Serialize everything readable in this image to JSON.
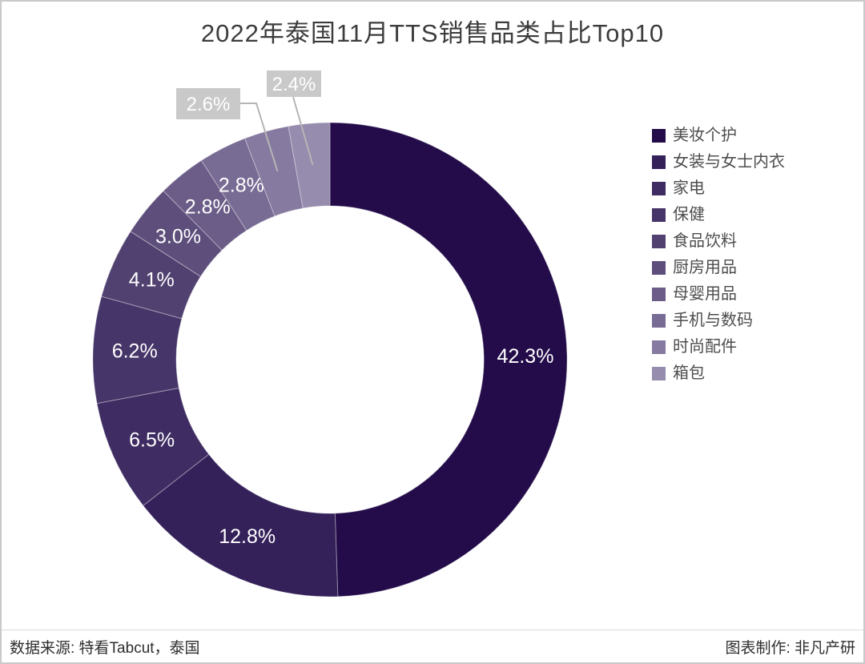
{
  "header": {
    "title": "2022年泰国11月TTS销售品类占比Top10"
  },
  "chart_data": {
    "type": "pie",
    "subtype": "donut",
    "title": "2022年泰国11月TTS销售品类占比Top10",
    "categories": [
      "美妆个护",
      "女装与女士内衣",
      "家电",
      "保健",
      "食品饮料",
      "厨房用品",
      "母婴用品",
      "手机与数码",
      "时尚配件",
      "箱包"
    ],
    "values": [
      42.3,
      12.8,
      6.5,
      6.2,
      4.1,
      3.0,
      2.8,
      2.8,
      2.6,
      2.4
    ],
    "labels": [
      "42.3%",
      "12.8%",
      "6.5%",
      "6.2%",
      "4.1%",
      "3.0%",
      "2.8%",
      "2.8%",
      "2.6%",
      "2.4%"
    ],
    "unit": "%",
    "colors": [
      "#230c49",
      "#34215a",
      "#3e2c62",
      "#463568",
      "#514170",
      "#5d4e7b",
      "#6b5d87",
      "#786b94",
      "#867aa0",
      "#968cae"
    ],
    "label_color": "#ffffff",
    "callout_box_color": "#c9c9c9",
    "leader_line_color": "#b5b5b5",
    "legend_position": "right",
    "start_angle": "top",
    "direction": "clockwise",
    "note": "values sum to 85.5 (Top10 share); ring is normalized to full circle"
  },
  "footer": {
    "source": "数据来源: 特看Tabcut，泰国",
    "credit": "图表制作: 非凡产研"
  }
}
